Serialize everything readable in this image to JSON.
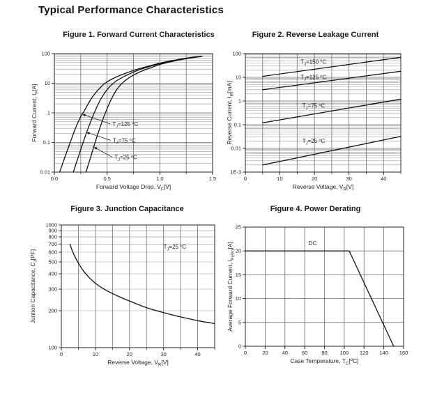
{
  "page": {
    "title": "Typical Performance Characteristics"
  },
  "colors": {
    "background": "#ffffff",
    "text": "#1f1f1f",
    "curve": "#111111",
    "grid_minor": "#9a9a9a",
    "grid_major": "#6e6e6e",
    "frame": "#222222"
  },
  "chart_data": [
    {
      "id": "figure-1",
      "type": "line",
      "title": "Figure 1. Forward Current Characteristics",
      "xlabel": "Forward Voltage Drop, V_{F}[V]",
      "ylabel": "Forward Current, I_{F}[A]",
      "x": {
        "scale": "linear",
        "min": 0,
        "max": 1.5,
        "grid_step": 0.25,
        "minor_step": 0.25,
        "ticks": [
          {
            "v": 0,
            "label": "0.0"
          },
          {
            "v": 0.5,
            "label": "0.5"
          },
          {
            "v": 1.0,
            "label": "1.0"
          },
          {
            "v": 1.5,
            "label": "1.5"
          }
        ]
      },
      "y": {
        "scale": "log",
        "min": 0.01,
        "max": 100,
        "ticks": [
          {
            "v": 100,
            "label": "100"
          },
          {
            "v": 10,
            "label": "10"
          },
          {
            "v": 1,
            "label": "1"
          },
          {
            "v": 0.1,
            "label": "0.1"
          },
          {
            "v": 0.01,
            "label": "0.01"
          }
        ]
      },
      "series": [
        {
          "name": "T_{J}=125 ^{o}C",
          "smooth": true,
          "points": [
            [
              0.05,
              0.01
            ],
            [
              0.1,
              0.032
            ],
            [
              0.15,
              0.1
            ],
            [
              0.2,
              0.3
            ],
            [
              0.25,
              0.75
            ],
            [
              0.28,
              1.1
            ],
            [
              0.32,
              2.0
            ],
            [
              0.36,
              3.4
            ],
            [
              0.4,
              5.2
            ],
            [
              0.44,
              7.4
            ],
            [
              0.48,
              10
            ],
            [
              0.54,
              13.5
            ],
            [
              0.6,
              17
            ],
            [
              0.68,
              22
            ],
            [
              0.78,
              29
            ],
            [
              0.88,
              37
            ],
            [
              0.98,
              46
            ],
            [
              1.08,
              55
            ],
            [
              1.18,
              64
            ],
            [
              1.28,
              73
            ],
            [
              1.4,
              82
            ]
          ]
        },
        {
          "name": "T_{J}=75 ^{o}C",
          "smooth": true,
          "points": [
            [
              0.18,
              0.01
            ],
            [
              0.23,
              0.035
            ],
            [
              0.28,
              0.12
            ],
            [
              0.32,
              0.3
            ],
            [
              0.36,
              0.7
            ],
            [
              0.4,
              1.5
            ],
            [
              0.44,
              2.9
            ],
            [
              0.48,
              4.9
            ],
            [
              0.53,
              8.0
            ],
            [
              0.58,
              11.5
            ],
            [
              0.64,
              15.5
            ],
            [
              0.71,
              20.5
            ],
            [
              0.8,
              28
            ],
            [
              0.9,
              36.5
            ],
            [
              1.0,
              46
            ],
            [
              1.1,
              55
            ],
            [
              1.2,
              64
            ],
            [
              1.3,
              73
            ],
            [
              1.4,
              82
            ]
          ]
        },
        {
          "name": "T_{J}=25 ^{o}C",
          "smooth": true,
          "points": [
            [
              0.3,
              0.01
            ],
            [
              0.35,
              0.038
            ],
            [
              0.39,
              0.11
            ],
            [
              0.43,
              0.3
            ],
            [
              0.47,
              0.75
            ],
            [
              0.51,
              1.7
            ],
            [
              0.55,
              3.4
            ],
            [
              0.59,
              6.0
            ],
            [
              0.63,
              9.0
            ],
            [
              0.68,
              13
            ],
            [
              0.74,
              18
            ],
            [
              0.82,
              25
            ],
            [
              0.91,
              33
            ],
            [
              1.0,
              43
            ],
            [
              1.1,
              53
            ],
            [
              1.2,
              62.5
            ],
            [
              1.3,
              72
            ],
            [
              1.4,
              81
            ]
          ]
        }
      ],
      "annotations": [
        {
          "text": "T_{J}=125 ^{o}C",
          "x": 0.55,
          "y": 0.36,
          "arrow_to": [
            0.265,
            0.9
          ]
        },
        {
          "text": "T_{J}=75 ^{o}C",
          "x": 0.555,
          "y": 0.1,
          "arrow_to": [
            0.305,
            0.22
          ]
        },
        {
          "text": "T_{J}=25 ^{o}C",
          "x": 0.57,
          "y": 0.027,
          "arrow_to": [
            0.375,
            0.07
          ]
        }
      ]
    },
    {
      "id": "figure-2",
      "type": "line",
      "title": "Figure 2. Reverse Leakage Current",
      "xlabel": "Reverse Voltage, V_{R}[V]",
      "ylabel": "Reverse Current, I_{R}[mA]",
      "x": {
        "scale": "linear",
        "min": 0,
        "max": 45,
        "grid_step": 5,
        "minor_step": 5,
        "ticks": [
          {
            "v": 0,
            "label": "0"
          },
          {
            "v": 10,
            "label": "10"
          },
          {
            "v": 20,
            "label": "20"
          },
          {
            "v": 30,
            "label": "30"
          },
          {
            "v": 40,
            "label": "40"
          }
        ]
      },
      "y": {
        "scale": "log",
        "min": 0.001,
        "max": 100,
        "ticks": [
          {
            "v": 100,
            "label": "100"
          },
          {
            "v": 10,
            "label": "10"
          },
          {
            "v": 1,
            "label": "1"
          },
          {
            "v": 0.1,
            "label": "0.1"
          },
          {
            "v": 0.01,
            "label": "0.01"
          },
          {
            "v": 0.001,
            "label": "1E-3"
          }
        ]
      },
      "series": [
        {
          "name": "T_{J}=150 ^{o}C",
          "smooth": false,
          "points": [
            [
              5,
              11
            ],
            [
              45,
              70
            ]
          ]
        },
        {
          "name": "T_{J}=125 ^{o}C",
          "smooth": false,
          "points": [
            [
              5,
              3
            ],
            [
              45,
              18
            ]
          ]
        },
        {
          "name": "T_{J}=75 ^{o}C",
          "smooth": false,
          "points": [
            [
              5,
              0.12
            ],
            [
              45,
              1.2
            ]
          ]
        },
        {
          "name": "T_{J}=25 ^{o}C",
          "smooth": false,
          "points": [
            [
              5,
              0.002
            ],
            [
              45,
              0.032
            ]
          ]
        }
      ],
      "annotations": [
        {
          "text": "T_{J}=150 ^{o}C",
          "x": 16,
          "y": 38
        },
        {
          "text": "T_{J}=125 ^{o}C",
          "x": 16,
          "y": 8.5
        },
        {
          "text": "T_{J}=75 ^{o}C",
          "x": 16.5,
          "y": 0.52
        },
        {
          "text": "T_{J}=25 ^{o}C",
          "x": 16.5,
          "y": 0.017
        }
      ]
    },
    {
      "id": "figure-3",
      "type": "line",
      "title": "Figure 3. Junction Capacitance",
      "xlabel": "Reverse Voltage, V_{R}[V]",
      "ylabel": "Juntion Capacitance, C_{J}[PF]",
      "x": {
        "scale": "linear",
        "min": 0,
        "max": 45,
        "grid_step": 5,
        "minor_step": 5,
        "ticks": [
          {
            "v": 0,
            "label": "0"
          },
          {
            "v": 10,
            "label": "10"
          },
          {
            "v": 20,
            "label": "20"
          },
          {
            "v": 30,
            "label": "30"
          },
          {
            "v": 40,
            "label": "40"
          }
        ]
      },
      "y": {
        "scale": "log",
        "min": 100,
        "max": 1000,
        "ticks": [
          {
            "v": 1000,
            "label": "1000"
          },
          {
            "v": 900,
            "label": "900"
          },
          {
            "v": 800,
            "label": "800"
          },
          {
            "v": 700,
            "label": "700"
          },
          {
            "v": 600,
            "label": "600"
          },
          {
            "v": 500,
            "label": "500"
          },
          {
            "v": 400,
            "label": "400"
          },
          {
            "v": 300,
            "label": "300"
          },
          {
            "v": 200,
            "label": "200"
          },
          {
            "v": 100,
            "label": "100"
          }
        ]
      },
      "series": [
        {
          "name": "T_{J}=25 ^{o}C",
          "smooth": true,
          "points": [
            [
              2.5,
              700
            ],
            [
              3.5,
              590
            ],
            [
              5,
              490
            ],
            [
              7,
              405
            ],
            [
              10,
              335
            ],
            [
              13,
              295
            ],
            [
              16,
              268
            ],
            [
              20,
              240
            ],
            [
              25,
              212
            ],
            [
              30,
              193
            ],
            [
              35,
              178
            ],
            [
              40,
              166
            ],
            [
              45,
              157
            ]
          ]
        }
      ],
      "annotations": [
        {
          "text": "T_{J}=25 ^{o}C",
          "x": 30,
          "y": 640
        }
      ]
    },
    {
      "id": "figure-4",
      "type": "line",
      "title": "Figure 4. Power Derating",
      "xlabel": "Case Temperature, T_{C}[^{o}C]",
      "ylabel": "Average Forward Current, I_{F(AV)}[A]",
      "x": {
        "scale": "linear",
        "min": 0,
        "max": 160,
        "grid_step": 20,
        "minor_step": 20,
        "ticks": [
          {
            "v": 0,
            "label": "0"
          },
          {
            "v": 20,
            "label": "20"
          },
          {
            "v": 40,
            "label": "40"
          },
          {
            "v": 60,
            "label": "60"
          },
          {
            "v": 80,
            "label": "80"
          },
          {
            "v": 100,
            "label": "100"
          },
          {
            "v": 120,
            "label": "120"
          },
          {
            "v": 140,
            "label": "140"
          },
          {
            "v": 160,
            "label": "160"
          }
        ]
      },
      "y": {
        "scale": "linear",
        "min": 0,
        "max": 25,
        "grid_step": 5,
        "minor_step": 5,
        "ticks": [
          {
            "v": 0,
            "label": "0"
          },
          {
            "v": 5,
            "label": "5"
          },
          {
            "v": 10,
            "label": "10"
          },
          {
            "v": 15,
            "label": "15"
          },
          {
            "v": 20,
            "label": "20"
          },
          {
            "v": 25,
            "label": "25"
          }
        ]
      },
      "series": [
        {
          "name": "DC",
          "smooth": false,
          "points": [
            [
              0,
              20
            ],
            [
              105,
              20
            ],
            [
              150,
              0
            ]
          ]
        }
      ],
      "annotations": [
        {
          "text": "DC",
          "x": 64,
          "y": 21.2
        }
      ]
    }
  ]
}
